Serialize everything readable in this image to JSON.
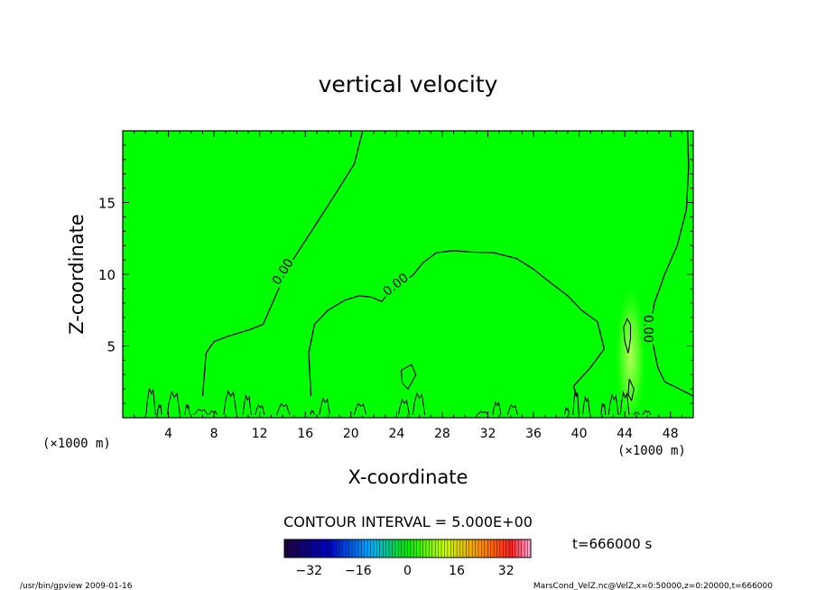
{
  "chart_data": {
    "type": "contour",
    "title": "vertical velocity",
    "xlabel": "X-coordinate",
    "ylabel": "Z-coordinate",
    "x_unit": "(×1000 m)",
    "x_unit_left": "(×1000 m)",
    "xlim": [
      0,
      50
    ],
    "ylim": [
      0,
      20
    ],
    "x_ticks": [
      4,
      8,
      12,
      16,
      20,
      24,
      28,
      32,
      36,
      40,
      44,
      48
    ],
    "y_ticks": [
      5,
      10,
      15
    ],
    "contour_interval_text": "CONTOUR INTERVAL = 5.000E+00",
    "time_label": "t=666000 s",
    "colorbar": {
      "min": -40,
      "max": 40,
      "ticks": [
        -32,
        -16,
        0,
        16,
        32
      ]
    },
    "contour_labels": [
      "0.00",
      "0.00",
      "0.00"
    ],
    "zero_contours": [
      {
        "name": "left",
        "points": [
          [
            7,
            1.5
          ],
          [
            7.3,
            4.5
          ],
          [
            8,
            5.3
          ],
          [
            9.3,
            5.7
          ],
          [
            11,
            6.1
          ],
          [
            12.3,
            6.5
          ],
          [
            13.4,
            8.5
          ],
          [
            14.5,
            10.5
          ],
          [
            16.7,
            13.2
          ],
          [
            18.8,
            15.8
          ],
          [
            20.3,
            17.7
          ],
          [
            21,
            19.9
          ]
        ]
      },
      {
        "name": "middle",
        "points": [
          [
            16.5,
            1.5
          ],
          [
            16.3,
            4.5
          ],
          [
            16.8,
            6.5
          ],
          [
            18,
            7.5
          ],
          [
            19.5,
            8.2
          ],
          [
            20.7,
            8.5
          ],
          [
            21.8,
            8.4
          ],
          [
            22.7,
            8.1
          ],
          [
            23.5,
            8.9
          ],
          [
            24.6,
            9.4
          ],
          [
            25.5,
            10
          ],
          [
            26.3,
            10.8
          ],
          [
            27.5,
            11.5
          ],
          [
            29,
            11.65
          ],
          [
            30.5,
            11.55
          ],
          [
            32.5,
            11.5
          ],
          [
            34.5,
            11.1
          ],
          [
            36,
            10.35
          ],
          [
            37.5,
            9.4
          ],
          [
            39,
            8.5
          ],
          [
            40.2,
            7.5
          ],
          [
            41.6,
            6.7
          ],
          [
            42.2,
            4.8
          ],
          [
            41,
            3.5
          ],
          [
            39.5,
            2.2
          ],
          [
            39.8,
            1.5
          ]
        ]
      },
      {
        "name": "right",
        "points": [
          [
            49.5,
            20
          ],
          [
            49.6,
            17.5
          ],
          [
            49.4,
            14.5
          ],
          [
            48.6,
            12
          ],
          [
            47.5,
            10
          ],
          [
            46.6,
            8
          ],
          [
            46.2,
            6.2
          ],
          [
            46.9,
            3.5
          ],
          [
            47.5,
            2.5
          ],
          [
            48.8,
            2
          ],
          [
            50,
            1.5
          ]
        ]
      }
    ],
    "closed_contours": [
      {
        "points": [
          [
            44.2,
            6.9
          ],
          [
            44.5,
            6.5
          ],
          [
            44.5,
            5.5
          ],
          [
            44.3,
            4.5
          ],
          [
            44.0,
            5.3
          ],
          [
            43.9,
            6.3
          ]
        ]
      },
      {
        "points": [
          [
            44.4,
            2.7
          ],
          [
            44.8,
            2
          ],
          [
            44.6,
            1.2
          ],
          [
            44.3,
            1.6
          ]
        ]
      },
      {
        "points": [
          [
            24.4,
            3.3
          ],
          [
            25.3,
            3.7
          ],
          [
            25.7,
            3
          ],
          [
            25,
            2
          ],
          [
            24.5,
            2.4
          ]
        ]
      }
    ],
    "bottom_noise_x_range": [
      0.5,
      47
    ],
    "bottom_noise_height_range": [
      0.3,
      2.3
    ],
    "background_color": "#00ff00",
    "updraft_x": 44.5
  },
  "footer": {
    "left": "/usr/bin/gpview  2009-01-16",
    "right": "MarsCond_VelZ.nc@VelZ,x=0:50000,z=0:20000,t=666000"
  }
}
